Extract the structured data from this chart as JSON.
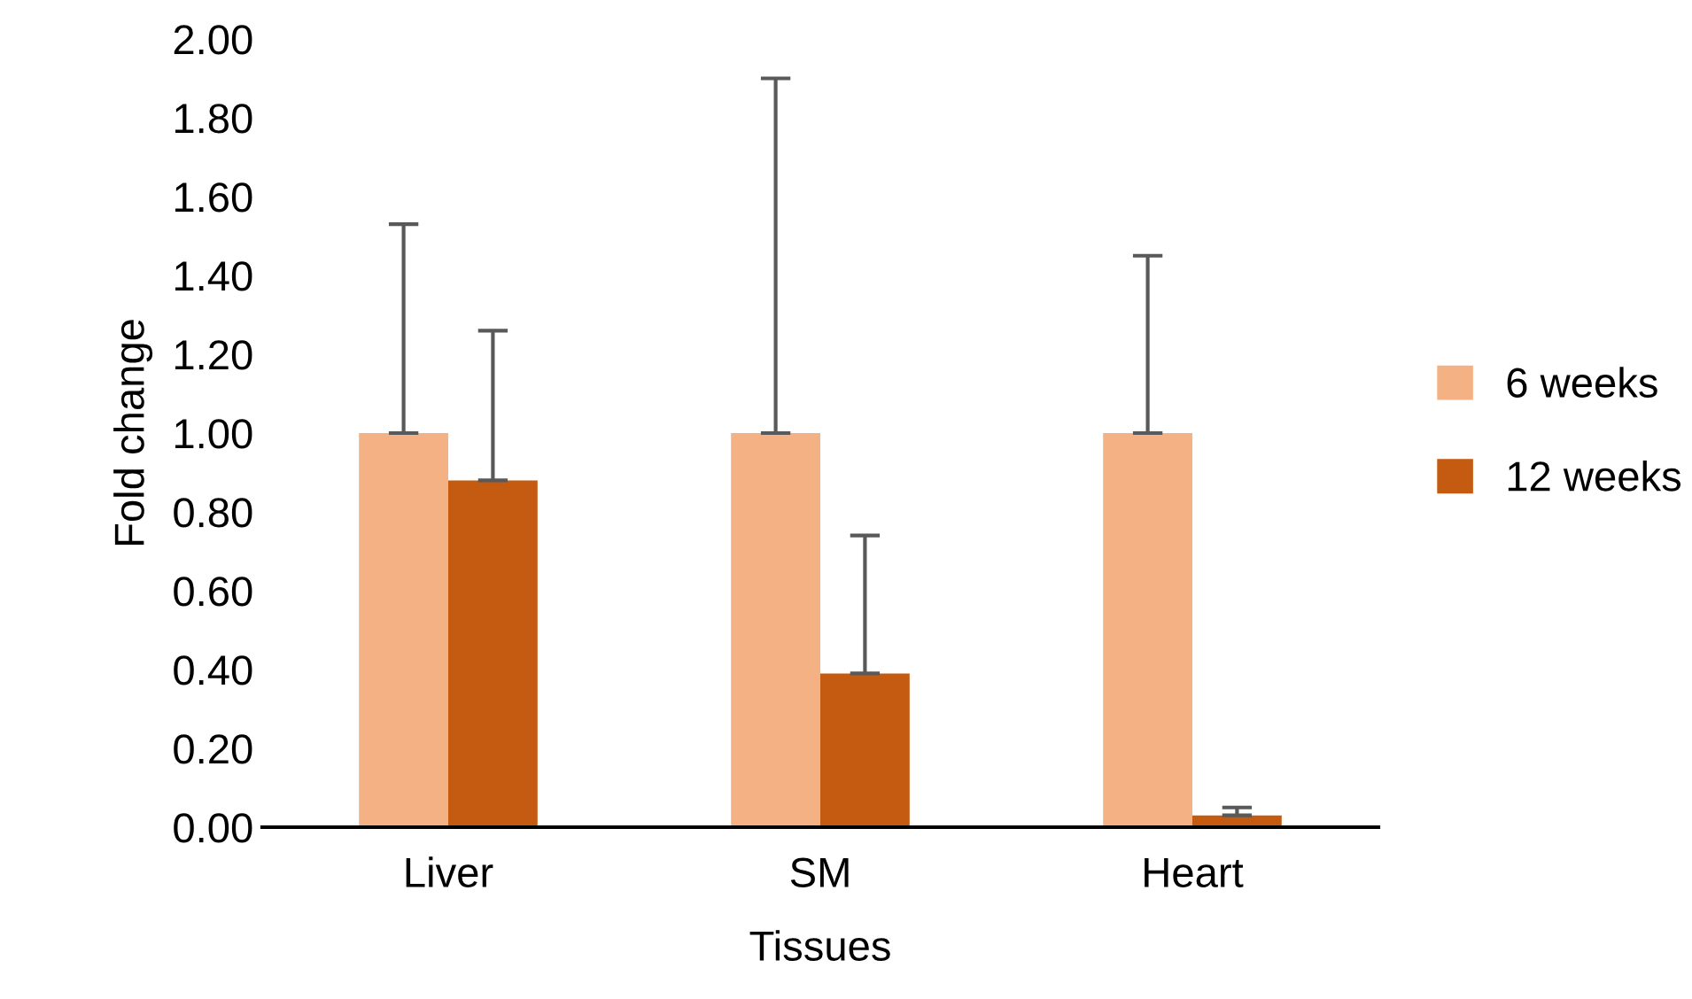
{
  "chart_data": {
    "type": "bar",
    "xlabel": "Tissues",
    "ylabel": "Fold change",
    "categories": [
      "Liver",
      "SM",
      "Heart"
    ],
    "series": [
      {
        "name": "6 weeks",
        "color": "#f4b183",
        "values": [
          1.0,
          1.0,
          1.0
        ],
        "errors": [
          [
            1.0,
            1.53
          ],
          [
            1.0,
            1.9
          ],
          [
            1.0,
            1.45
          ]
        ]
      },
      {
        "name": "12 weeks",
        "color": "#c55a11",
        "values": [
          0.88,
          0.39,
          0.03
        ],
        "errors": [
          [
            0.88,
            1.26
          ],
          [
            0.39,
            0.74
          ],
          [
            0.03,
            0.05
          ]
        ]
      }
    ],
    "ylim": [
      0,
      2.0
    ],
    "yticks": [
      {
        "value": 0,
        "label": "0.00"
      },
      {
        "value": 0.2,
        "label": "0.20"
      },
      {
        "value": 0.4,
        "label": "0.40"
      },
      {
        "value": 0.6,
        "label": "0.60"
      },
      {
        "value": 0.8,
        "label": "0.80"
      },
      {
        "value": 1.0,
        "label": "1.00"
      },
      {
        "value": 1.2,
        "label": "1.20"
      },
      {
        "value": 1.4,
        "label": "1.40"
      },
      {
        "value": 1.6,
        "label": "1.60"
      },
      {
        "value": 1.8,
        "label": "1.80"
      },
      {
        "value": 2.0,
        "label": "2.00"
      }
    ],
    "legend": "right"
  }
}
